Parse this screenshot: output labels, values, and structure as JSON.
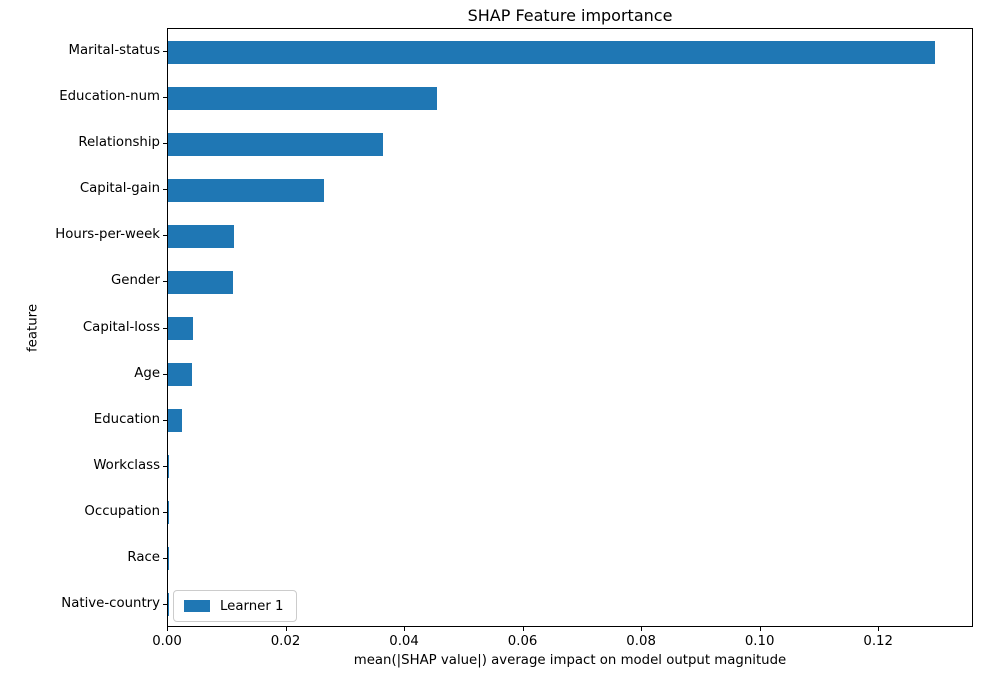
{
  "figure": {
    "title": "SHAP Feature importance",
    "xlabel": "mean(|SHAP value|) average impact on model output magnitude",
    "ylabel": "feature",
    "legend": {
      "label": "Learner 1",
      "swatch_color": "#1f77b4"
    }
  },
  "chart_data": {
    "type": "bar",
    "orientation": "horizontal",
    "title": "SHAP Feature importance",
    "xlabel": "mean(|SHAP value|) average impact on model output magnitude",
    "ylabel": "feature",
    "categories": [
      "Marital-status",
      "Education-num",
      "Relationship",
      "Capital-gain",
      "Hours-per-week",
      "Gender",
      "Capital-loss",
      "Age",
      "Education",
      "Workclass",
      "Occupation",
      "Race",
      "Native-country"
    ],
    "series": [
      {
        "name": "Learner 1",
        "color": "#1f77b4",
        "values": [
          0.1294,
          0.0454,
          0.0363,
          0.0264,
          0.0111,
          0.0109,
          0.0043,
          0.0041,
          0.0023,
          0.0002,
          0.0002,
          0.0001,
          0.0001
        ]
      }
    ],
    "xlim": [
      0,
      0.136
    ],
    "xticks": [
      0.0,
      0.02,
      0.04,
      0.06,
      0.08,
      0.1,
      0.12
    ],
    "xtick_labels": [
      "0.00",
      "0.02",
      "0.04",
      "0.06",
      "0.08",
      "0.10",
      "0.12"
    ],
    "grid": false,
    "legend_position": "lower left"
  }
}
